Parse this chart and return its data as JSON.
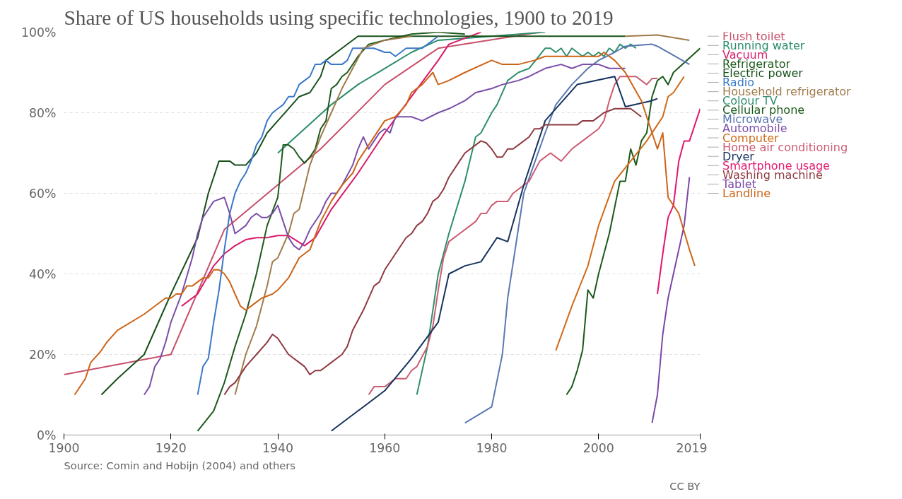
{
  "chart_data": {
    "type": "line",
    "title": "Share of US households using specific technologies, 1900 to 2019",
    "xlim": [
      1900,
      2019
    ],
    "xticks": [
      1900,
      1920,
      1940,
      1960,
      1980,
      2000,
      2019
    ],
    "ylim": [
      0,
      100
    ],
    "yticks": [
      {
        "value": 0,
        "label": "0%"
      },
      {
        "value": 20,
        "label": "20%"
      },
      {
        "value": 40,
        "label": "40%"
      },
      {
        "value": 60,
        "label": "60%"
      },
      {
        "value": 80,
        "label": "80%"
      },
      {
        "value": 100,
        "label": "100%"
      }
    ],
    "grid": "y",
    "legend": "right",
    "marker": "none",
    "line_style": "solid",
    "annotations": [
      "Source: Comin and Hobijn (2004) and others",
      "CC BY"
    ],
    "series": [
      {
        "name": "Flush toilet",
        "color": "#c8506a",
        "x": [
          1900,
          1920,
          1930,
          1948,
          1960,
          1970,
          1989
        ],
        "values": [
          15,
          20,
          51,
          71,
          87,
          96,
          100
        ]
      },
      {
        "name": "Running water",
        "color": "#2a8c6a",
        "x": [
          1940,
          1950,
          1955,
          1960,
          1965,
          1970,
          1980,
          1990
        ],
        "values": [
          70,
          82,
          87,
          91,
          95,
          98,
          99,
          100
        ]
      },
      {
        "name": "Vacuum",
        "color": "#d81b6a",
        "x": [
          1922,
          1925,
          1928,
          1930,
          1932,
          1934,
          1936,
          1938,
          1940,
          1942,
          1945,
          1947,
          1950,
          1955,
          1960,
          1965,
          1970,
          1972,
          1978
        ],
        "values": [
          32,
          35,
          42,
          45,
          47,
          48.5,
          49,
          49,
          49.5,
          49.5,
          47,
          49,
          56,
          65,
          75,
          84,
          93,
          97,
          100
        ]
      },
      {
        "name": "Refrigerator",
        "color": "#1d5a1d",
        "x": [
          1925,
          1928,
          1930,
          1932,
          1934,
          1936,
          1938,
          1940,
          1941,
          1942,
          1943,
          1944,
          1945,
          1946,
          1947,
          1948,
          1949,
          1950,
          1951,
          1952,
          1953,
          1955,
          1957,
          1960,
          1965,
          1970,
          1975
        ],
        "values": [
          1,
          6,
          13,
          22,
          30,
          40,
          52,
          59,
          72,
          72,
          71,
          69,
          67.5,
          69,
          71,
          76,
          78,
          86,
          87,
          89,
          90,
          94,
          97,
          98,
          99.5,
          100,
          99.5
        ]
      },
      {
        "name": "Electric power",
        "color": "#18501a",
        "x": [
          1907,
          1910,
          1915,
          1920,
          1925,
          1927,
          1929,
          1931,
          1932,
          1934,
          1936,
          1938,
          1940,
          1942,
          1944,
          1946,
          1948,
          1949,
          1952,
          1955,
          1960,
          2005
        ],
        "values": [
          10,
          14,
          20,
          35,
          49,
          60,
          68,
          68,
          67,
          67,
          70,
          75,
          78,
          81,
          84,
          85,
          89,
          93,
          96,
          99,
          99,
          99
        ]
      },
      {
        "name": "Radio",
        "color": "#3a78c9",
        "x": [
          1925,
          1926,
          1927,
          1928,
          1929,
          1930,
          1931,
          1932,
          1933,
          1934,
          1935,
          1936,
          1937,
          1938,
          1939,
          1940,
          1941,
          1942,
          1943,
          1944,
          1945,
          1946,
          1947,
          1948,
          1949,
          1950,
          1952,
          1953,
          1954,
          1956,
          1958,
          1960,
          1961,
          1962,
          1963,
          1964,
          1967,
          1968,
          1970
        ],
        "values": [
          10,
          17,
          19,
          28,
          36,
          46,
          55,
          60,
          63,
          65,
          68,
          72,
          74,
          78,
          80,
          81,
          82,
          84,
          84,
          87,
          88,
          89,
          92,
          92,
          93,
          92,
          92,
          93,
          96,
          96,
          96,
          95,
          95,
          94,
          95,
          96,
          96,
          97,
          99
        ]
      },
      {
        "name": "Household refrigerator",
        "color": "#a07a4a",
        "x": [
          1932,
          1934,
          1936,
          1938,
          1939,
          1940,
          1942,
          1943,
          1944,
          1946,
          1948,
          1950,
          1952,
          1954,
          1956,
          1958,
          1960,
          1965,
          1970,
          2005,
          2011,
          2017
        ],
        "values": [
          10,
          20,
          27,
          37,
          43,
          44,
          50,
          55,
          56,
          67,
          74,
          80,
          86,
          91,
          96,
          97,
          98,
          99,
          null,
          99,
          99.3,
          98
        ]
      },
      {
        "name": "Colour TV",
        "color": "#2e8f6c",
        "x": [
          1966,
          1968,
          1970,
          1972,
          1975,
          1977,
          1978,
          1980,
          1981,
          1983,
          1985,
          1987,
          1990,
          1991,
          1992,
          1993,
          1994,
          1995,
          1996,
          1997,
          1998,
          1999,
          2000,
          2001,
          2002,
          2003,
          2004,
          2005,
          2006,
          2007
        ],
        "values": [
          10,
          22,
          40,
          50,
          63,
          74,
          75,
          80,
          82,
          88,
          90,
          91,
          96,
          96,
          95,
          96,
          94,
          96,
          95,
          94,
          95,
          94,
          95,
          94,
          96,
          95,
          97,
          96,
          97,
          96
        ]
      },
      {
        "name": "Cellular phone",
        "color": "#1a5a1a",
        "x": [
          1994,
          1995,
          1996,
          1997,
          1998,
          1999,
          2000,
          2002,
          2004,
          2005,
          2006,
          2007,
          2008,
          2009,
          2010,
          2011,
          2012,
          2013,
          2014,
          2019
        ],
        "values": [
          10,
          12,
          16,
          21,
          36,
          34,
          40,
          50,
          63,
          63,
          71,
          67,
          73,
          75,
          84,
          88,
          89,
          87,
          90,
          96
        ]
      },
      {
        "name": "Microwave",
        "color": "#5a78b0",
        "x": [
          1975,
          1980,
          1982,
          1983,
          1986,
          1990,
          1992,
          1995,
          1998,
          2000,
          2003,
          2005,
          2010,
          2011,
          2017
        ],
        "values": [
          3,
          7,
          20,
          34,
          60,
          75,
          82,
          87,
          91,
          93,
          95,
          96.5,
          97,
          96.5,
          92
        ]
      },
      {
        "name": "Automobile",
        "color": "#7b4ea8",
        "x": [
          1915,
          1916,
          1917,
          1918,
          1919,
          1920,
          1922,
          1924,
          1925,
          1926,
          1927,
          1928,
          1930,
          1931,
          1932,
          1934,
          1935,
          1936,
          1937,
          1938,
          1939,
          1940,
          1941,
          1942,
          1943,
          1944,
          1945,
          1946,
          1948,
          1949,
          1950,
          1951,
          1952,
          1954,
          1955,
          1956,
          1957,
          1958,
          1959,
          1960,
          1961,
          1962,
          1965,
          1967,
          1970,
          1972,
          1975,
          1977,
          1980,
          1982,
          1985,
          1987,
          1990,
          1993,
          1995,
          1997,
          2000,
          2002,
          2005
        ],
        "values": [
          10,
          12,
          17,
          19,
          23,
          28,
          35,
          44,
          50,
          54,
          56,
          58,
          59,
          55,
          50,
          52,
          54,
          55,
          54,
          54,
          55,
          57,
          53,
          49,
          47,
          46,
          48,
          51,
          55,
          58,
          60,
          60,
          62,
          67,
          71,
          74,
          71,
          73,
          75,
          76,
          75,
          79,
          79,
          78,
          80,
          81,
          83,
          85,
          86,
          87,
          88,
          89,
          91,
          92,
          91,
          92,
          92,
          91,
          91
        ]
      },
      {
        "name": "Computer",
        "color": "#d06a1a",
        "x": [
          1992,
          1995,
          1998,
          2000,
          2003,
          2006,
          2009,
          2011,
          2012,
          2013,
          2014,
          2015,
          2016
        ],
        "values": [
          21,
          32,
          42,
          52,
          63,
          68,
          73,
          77,
          79,
          84,
          85,
          87,
          89
        ]
      },
      {
        "name": "Home air conditioning",
        "color": "#cc5c72",
        "x": [
          1957,
          1958,
          1960,
          1962,
          1964,
          1965,
          1966,
          1968,
          1969,
          1970,
          1971,
          1972,
          1974,
          1976,
          1977,
          1978,
          1979,
          1980,
          1981,
          1983,
          1984,
          1986,
          1987,
          1989,
          1991,
          1993,
          1995,
          1997,
          1999,
          2000,
          2001,
          2002,
          2003,
          2004,
          2007,
          2009,
          2010,
          2011
        ],
        "values": [
          10,
          12,
          12,
          14,
          14,
          16,
          17,
          22,
          27,
          36,
          44,
          48,
          50,
          52,
          53,
          55,
          55,
          57,
          58,
          58,
          60,
          62,
          63,
          68,
          70,
          68,
          71,
          73,
          75,
          76,
          78,
          83,
          87,
          89,
          89,
          87,
          88.5,
          88.5
        ]
      },
      {
        "name": "Dryer",
        "color": "#16335e",
        "x": [
          1950,
          1955,
          1960,
          1965,
          1970,
          1972,
          1975,
          1978,
          1981,
          1983,
          1986,
          1990,
          1996,
          2003,
          2005,
          2010,
          2011
        ],
        "values": [
          1,
          6,
          11,
          19,
          28,
          40,
          42,
          43,
          49,
          48,
          62,
          78,
          87,
          89,
          81.5,
          83,
          83.5
        ]
      },
      {
        "name": "Smartphone usage",
        "color": "#e3176d",
        "x": [
          2011,
          2012,
          2013,
          2014,
          2015,
          2016,
          2017,
          2019
        ],
        "values": [
          35,
          45,
          54,
          57,
          68,
          73,
          73,
          81
        ]
      },
      {
        "name": "Washing machine",
        "color": "#8e3a40",
        "x": [
          1930,
          1931,
          1932,
          1934,
          1936,
          1938,
          1939,
          1940,
          1942,
          1944,
          1945,
          1946,
          1947,
          1948,
          1950,
          1952,
          1953,
          1954,
          1956,
          1958,
          1959,
          1960,
          1962,
          1964,
          1965,
          1966,
          1967,
          1968,
          1969,
          1970,
          1971,
          1972,
          1974,
          1975,
          1977,
          1978,
          1979,
          1980,
          1981,
          1982,
          1983,
          1984,
          1985,
          1987,
          1988,
          1989,
          1990,
          1996,
          1997,
          1999,
          2001,
          2003,
          2006,
          2008
        ],
        "values": [
          10,
          12,
          13,
          17,
          20,
          23,
          25,
          24,
          20,
          18,
          17,
          15,
          16,
          16,
          18,
          20,
          22,
          26,
          31,
          37,
          38,
          41,
          45,
          49,
          50,
          52,
          53,
          55,
          58,
          59,
          61,
          64,
          68,
          70,
          72,
          73,
          72.5,
          71,
          69,
          69,
          71,
          71,
          72,
          74,
          76,
          76,
          77,
          77,
          78,
          78,
          80,
          81,
          81,
          79
        ]
      },
      {
        "name": "Tablet",
        "color": "#7a48a8",
        "x": [
          2010,
          2011,
          2012,
          2013,
          2014,
          2016,
          2017
        ],
        "values": [
          3,
          10,
          25,
          34,
          40,
          52,
          64
        ]
      },
      {
        "name": "Landline",
        "color": "#cc6418",
        "x": [
          1902,
          1904,
          1905,
          1907,
          1908,
          1910,
          1915,
          1919,
          1920,
          1921,
          1922,
          1923,
          1924,
          1925,
          1926,
          1927,
          1928,
          1929,
          1930,
          1931,
          1932,
          1933,
          1934,
          1935,
          1936,
          1937,
          1939,
          1940,
          1942,
          1944,
          1946,
          1948,
          1950,
          1952,
          1954,
          1955,
          1957,
          1960,
          1962,
          1964,
          1965,
          1967,
          1969,
          1970,
          1972,
          1975,
          1980,
          1982,
          1985,
          1988,
          1990,
          1995,
          2000,
          2001,
          2003,
          2005,
          2008,
          2010,
          2011,
          2012,
          2013,
          2015,
          2017,
          2018
        ],
        "values": [
          10,
          14,
          18,
          21,
          23,
          26,
          30,
          34,
          34,
          35,
          35,
          37,
          37,
          38,
          39,
          39,
          41,
          41,
          40,
          38,
          35,
          32,
          31,
          32,
          33,
          34,
          35,
          36,
          39,
          44,
          46,
          53,
          58,
          62,
          65,
          68,
          72,
          78,
          79,
          82,
          85,
          87,
          90,
          87,
          88,
          90,
          93,
          92,
          92,
          93,
          94,
          94,
          94,
          95,
          93,
          90,
          83,
          75,
          71,
          75,
          59,
          55,
          46,
          42
        ]
      }
    ]
  }
}
